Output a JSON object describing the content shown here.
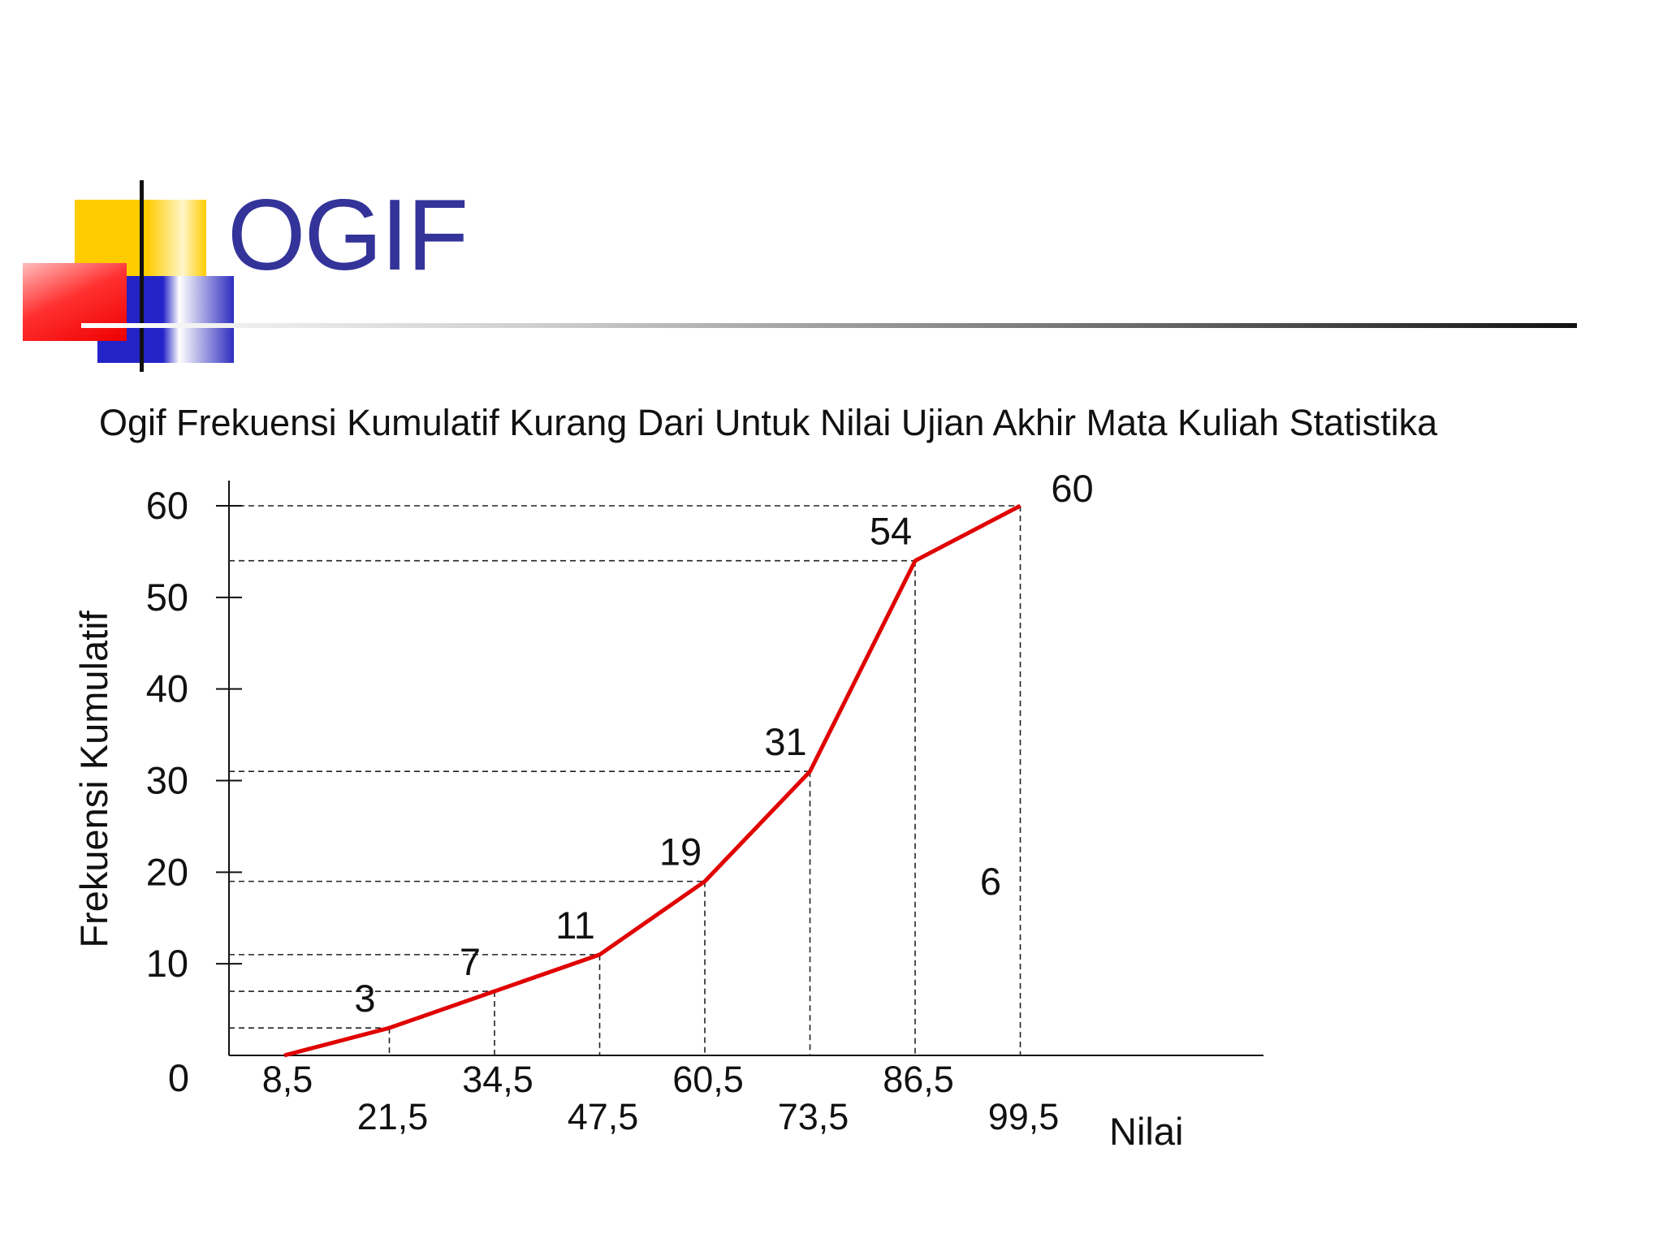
{
  "slide": {
    "title": "OGIF"
  },
  "colors": {
    "title": "#333399",
    "line": "#e00000",
    "accent_yellow": "#ffcc00",
    "accent_red": "#ff0000",
    "accent_blue": "#2323c8"
  },
  "chart_data": {
    "type": "line",
    "title": "Ogif Frekuensi Kumulatif Kurang Dari Untuk Nilai Ujian Akhir Mata Kuliah Statistika",
    "xlabel": "Nilai",
    "ylabel": "Frekuensi Kumulatif",
    "x": [
      "8,5",
      "21,5",
      "34,5",
      "47,5",
      "60,5",
      "73,5",
      "86,5",
      "99,5"
    ],
    "y": [
      0,
      3,
      7,
      11,
      19,
      31,
      54,
      60
    ],
    "point_labels": [
      "",
      "3",
      "7",
      "11",
      "19",
      "31",
      "54",
      "60"
    ],
    "yticks": [
      "0",
      "10",
      "20",
      "30",
      "40",
      "50",
      "60"
    ],
    "ylim": [
      0,
      60
    ],
    "annotations": [
      "6"
    ],
    "grid": false,
    "guide_lines": "dashed"
  }
}
